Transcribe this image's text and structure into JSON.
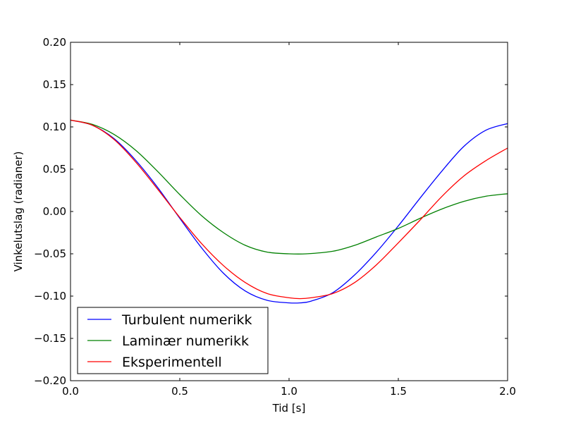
{
  "chart_data": {
    "type": "line",
    "xlabel": "Tid [s]",
    "ylabel": "Vinkelutslag (radianer)",
    "xlim": [
      0.0,
      2.0
    ],
    "ylim": [
      -0.2,
      0.2
    ],
    "xticks": [
      "0.0",
      "0.5",
      "1.0",
      "1.5",
      "2.0"
    ],
    "yticks": [
      "0.20",
      "0.15",
      "0.10",
      "0.05",
      "0.00",
      "−0.05",
      "−0.10",
      "−0.15",
      "−0.20"
    ],
    "grid": false,
    "legend_position": "lower-left",
    "series": [
      {
        "name": "Turbulent numerikk",
        "color": "#0000ff",
        "x": [
          0.0,
          0.1,
          0.2,
          0.3,
          0.4,
          0.5,
          0.6,
          0.7,
          0.8,
          0.9,
          1.0,
          1.05,
          1.1,
          1.2,
          1.3,
          1.4,
          1.5,
          1.6,
          1.7,
          1.8,
          1.9,
          2.0
        ],
        "y": [
          0.108,
          0.102,
          0.086,
          0.06,
          0.028,
          -0.008,
          -0.043,
          -0.073,
          -0.094,
          -0.105,
          -0.108,
          -0.108,
          -0.106,
          -0.096,
          -0.075,
          -0.048,
          -0.017,
          0.016,
          0.048,
          0.077,
          0.096,
          0.104
        ]
      },
      {
        "name": "Laminær numerikk",
        "color": "#008000",
        "x": [
          0.0,
          0.1,
          0.2,
          0.3,
          0.4,
          0.5,
          0.6,
          0.7,
          0.8,
          0.9,
          1.0,
          1.08,
          1.2,
          1.3,
          1.4,
          1.5,
          1.6,
          1.7,
          1.8,
          1.9,
          2.0
        ],
        "y": [
          0.108,
          0.103,
          0.091,
          0.072,
          0.047,
          0.02,
          -0.005,
          -0.025,
          -0.04,
          -0.048,
          -0.05,
          -0.05,
          -0.047,
          -0.04,
          -0.03,
          -0.02,
          -0.008,
          0.003,
          0.012,
          0.018,
          0.021
        ]
      },
      {
        "name": "Eksperimentell",
        "color": "#ff0000",
        "x": [
          0.0,
          0.1,
          0.2,
          0.3,
          0.4,
          0.5,
          0.6,
          0.7,
          0.8,
          0.9,
          1.0,
          1.05,
          1.1,
          1.2,
          1.3,
          1.4,
          1.5,
          1.6,
          1.7,
          1.8,
          1.9,
          2.0
        ],
        "y": [
          0.108,
          0.102,
          0.085,
          0.058,
          0.026,
          -0.007,
          -0.038,
          -0.064,
          -0.084,
          -0.097,
          -0.102,
          -0.103,
          -0.102,
          -0.097,
          -0.084,
          -0.063,
          -0.037,
          -0.01,
          0.018,
          0.042,
          0.06,
          0.075
        ]
      }
    ]
  }
}
